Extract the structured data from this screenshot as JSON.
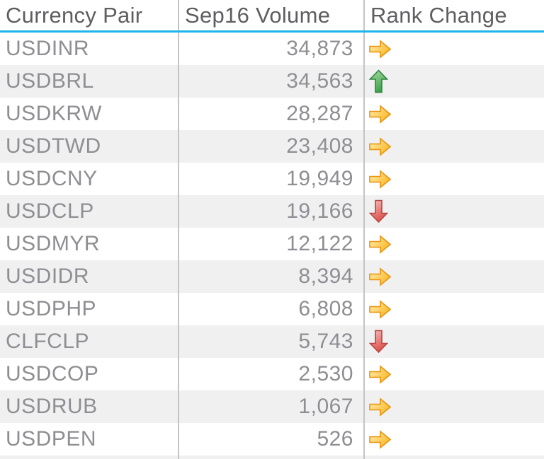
{
  "chart_data": {
    "type": "table",
    "title": "",
    "columns": [
      "Currency Pair",
      "Sep16 Volume",
      "Rank Change"
    ],
    "rows": [
      {
        "pair": "USDINR",
        "volume": "34,873",
        "volume_value": 34873,
        "rank_change": "same"
      },
      {
        "pair": "USDBRL",
        "volume": "34,563",
        "volume_value": 34563,
        "rank_change": "up"
      },
      {
        "pair": "USDKRW",
        "volume": "28,287",
        "volume_value": 28287,
        "rank_change": "same"
      },
      {
        "pair": "USDTWD",
        "volume": "23,408",
        "volume_value": 23408,
        "rank_change": "same"
      },
      {
        "pair": "USDCNY",
        "volume": "19,949",
        "volume_value": 19949,
        "rank_change": "same"
      },
      {
        "pair": "USDCLP",
        "volume": "19,166",
        "volume_value": 19166,
        "rank_change": "down"
      },
      {
        "pair": "USDMYR",
        "volume": "12,122",
        "volume_value": 12122,
        "rank_change": "same"
      },
      {
        "pair": "USDIDR",
        "volume": "8,394",
        "volume_value": 8394,
        "rank_change": "same"
      },
      {
        "pair": "USDPHP",
        "volume": "6,808",
        "volume_value": 6808,
        "rank_change": "same"
      },
      {
        "pair": "CLFCLP",
        "volume": "5,743",
        "volume_value": 5743,
        "rank_change": "down"
      },
      {
        "pair": "USDCOP",
        "volume": "2,530",
        "volume_value": 2530,
        "rank_change": "same"
      },
      {
        "pair": "USDRUB",
        "volume": "1,067",
        "volume_value": 1067,
        "rank_change": "same"
      },
      {
        "pair": "USDPEN",
        "volume": "526",
        "volume_value": 526,
        "rank_change": "same"
      }
    ],
    "icon_names": {
      "same": "right-arrow-icon",
      "up": "up-arrow-icon",
      "down": "down-arrow-icon"
    },
    "layout_hints": {
      "striped_rows": true,
      "column_separators": true,
      "volume_alignment": "right"
    }
  },
  "colors": {
    "header_underline": "#1FB4EC",
    "separator": "#C4C4C6",
    "header_text": "#5E5E62",
    "row_text": "#8E8E93",
    "alt_row_bg": "#F0F0F1",
    "arrow_same_fill_light": "#FFECB3",
    "arrow_same_fill_dark": "#FBBB2C",
    "arrow_same_stroke": "#E89410",
    "arrow_up_fill_light": "#A9DAA4",
    "arrow_up_fill_dark": "#3FA44B",
    "arrow_up_stroke": "#2F8540",
    "arrow_down_fill_light": "#F6BDB9",
    "arrow_down_fill_dark": "#DC534E",
    "arrow_down_stroke": "#BA4440"
  }
}
